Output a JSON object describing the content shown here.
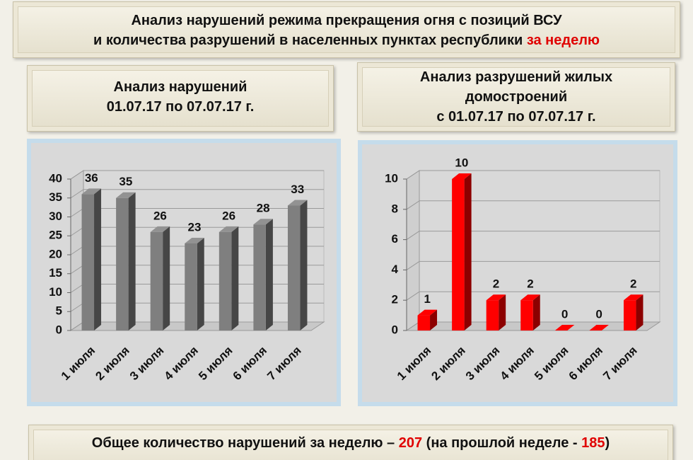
{
  "header": {
    "title_line1": "Анализ нарушений режима прекращения огня с позиций ВСУ",
    "title_line2": "и количества разрушений в населенных пунктах республики",
    "title_highlight": "за неделю"
  },
  "chart_data": [
    {
      "type": "bar",
      "title": "Анализ нарушений",
      "subtitle": "01.07.17 по 07.07.17 г.",
      "categories": [
        "1 июля",
        "2 июля",
        "3 июля",
        "4 июля",
        "5 июля",
        "6 июля",
        "7 июля"
      ],
      "values": [
        36,
        35,
        26,
        23,
        26,
        28,
        33
      ],
      "color": "#7f7f7f",
      "ylim": [
        0,
        40
      ],
      "yticks": [
        0,
        5,
        10,
        15,
        20,
        25,
        30,
        35,
        40
      ],
      "grid": true
    },
    {
      "type": "bar",
      "title": "Анализ разрушений жилых домостроений",
      "subtitle": "с 01.07.17 по 07.07.17 г.",
      "categories": [
        "1 июля",
        "2 июля",
        "3 июля",
        "4 июля",
        "5 июля",
        "6 июля",
        "7 июля"
      ],
      "values": [
        1,
        10,
        2,
        2,
        0,
        0,
        2
      ],
      "color": "#ff0000",
      "ylim": [
        0,
        10
      ],
      "yticks": [
        0,
        2,
        4,
        6,
        8,
        10
      ],
      "grid": true
    }
  ],
  "footer": {
    "text1": "Общее количество нарушений за неделю –",
    "count": 207,
    "text2": "(на прошлой неделе -",
    "previous": 185,
    "text3": ")"
  }
}
